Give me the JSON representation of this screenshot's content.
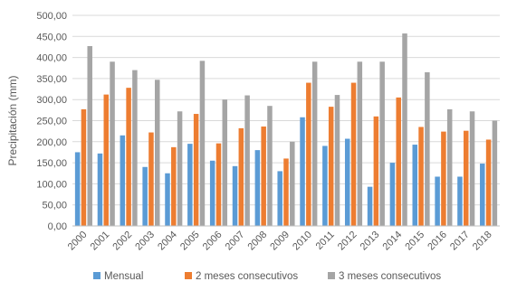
{
  "chart_data": {
    "type": "bar",
    "title": "",
    "xlabel": "",
    "ylabel": "Precipitación (mm)",
    "ylim": [
      0,
      500
    ],
    "ytick_step": 50,
    "ytick_labels": [
      "0,00",
      "50,00",
      "100,00",
      "150,00",
      "200,00",
      "250,00",
      "300,00",
      "350,00",
      "400,00",
      "450,00",
      "500,00"
    ],
    "grid": "horizontal",
    "legend_position": "bottom",
    "categories": [
      "2000",
      "2001",
      "2002",
      "2003",
      "2004",
      "2005",
      "2006",
      "2007",
      "2008",
      "2009",
      "2010",
      "2011",
      "2012",
      "2013",
      "2014",
      "2015",
      "2016",
      "2017",
      "2018"
    ],
    "series": [
      {
        "name": "Mensual",
        "color": "#5b9bd5",
        "values": [
          175,
          172,
          215,
          140,
          125,
          195,
          155,
          142,
          180,
          130,
          258,
          190,
          207,
          93,
          150,
          193,
          117,
          117,
          148
        ]
      },
      {
        "name": "2 meses consecutivos",
        "color": "#ed7d31",
        "values": [
          277,
          312,
          328,
          222,
          187,
          266,
          196,
          232,
          236,
          160,
          340,
          283,
          340,
          260,
          305,
          235,
          224,
          226,
          205
        ]
      },
      {
        "name": "3 meses consecutivos",
        "color": "#a5a5a5",
        "values": [
          427,
          390,
          370,
          347,
          272,
          392,
          300,
          310,
          285,
          200,
          390,
          311,
          390,
          390,
          457,
          365,
          277,
          272,
          250
        ]
      }
    ]
  }
}
